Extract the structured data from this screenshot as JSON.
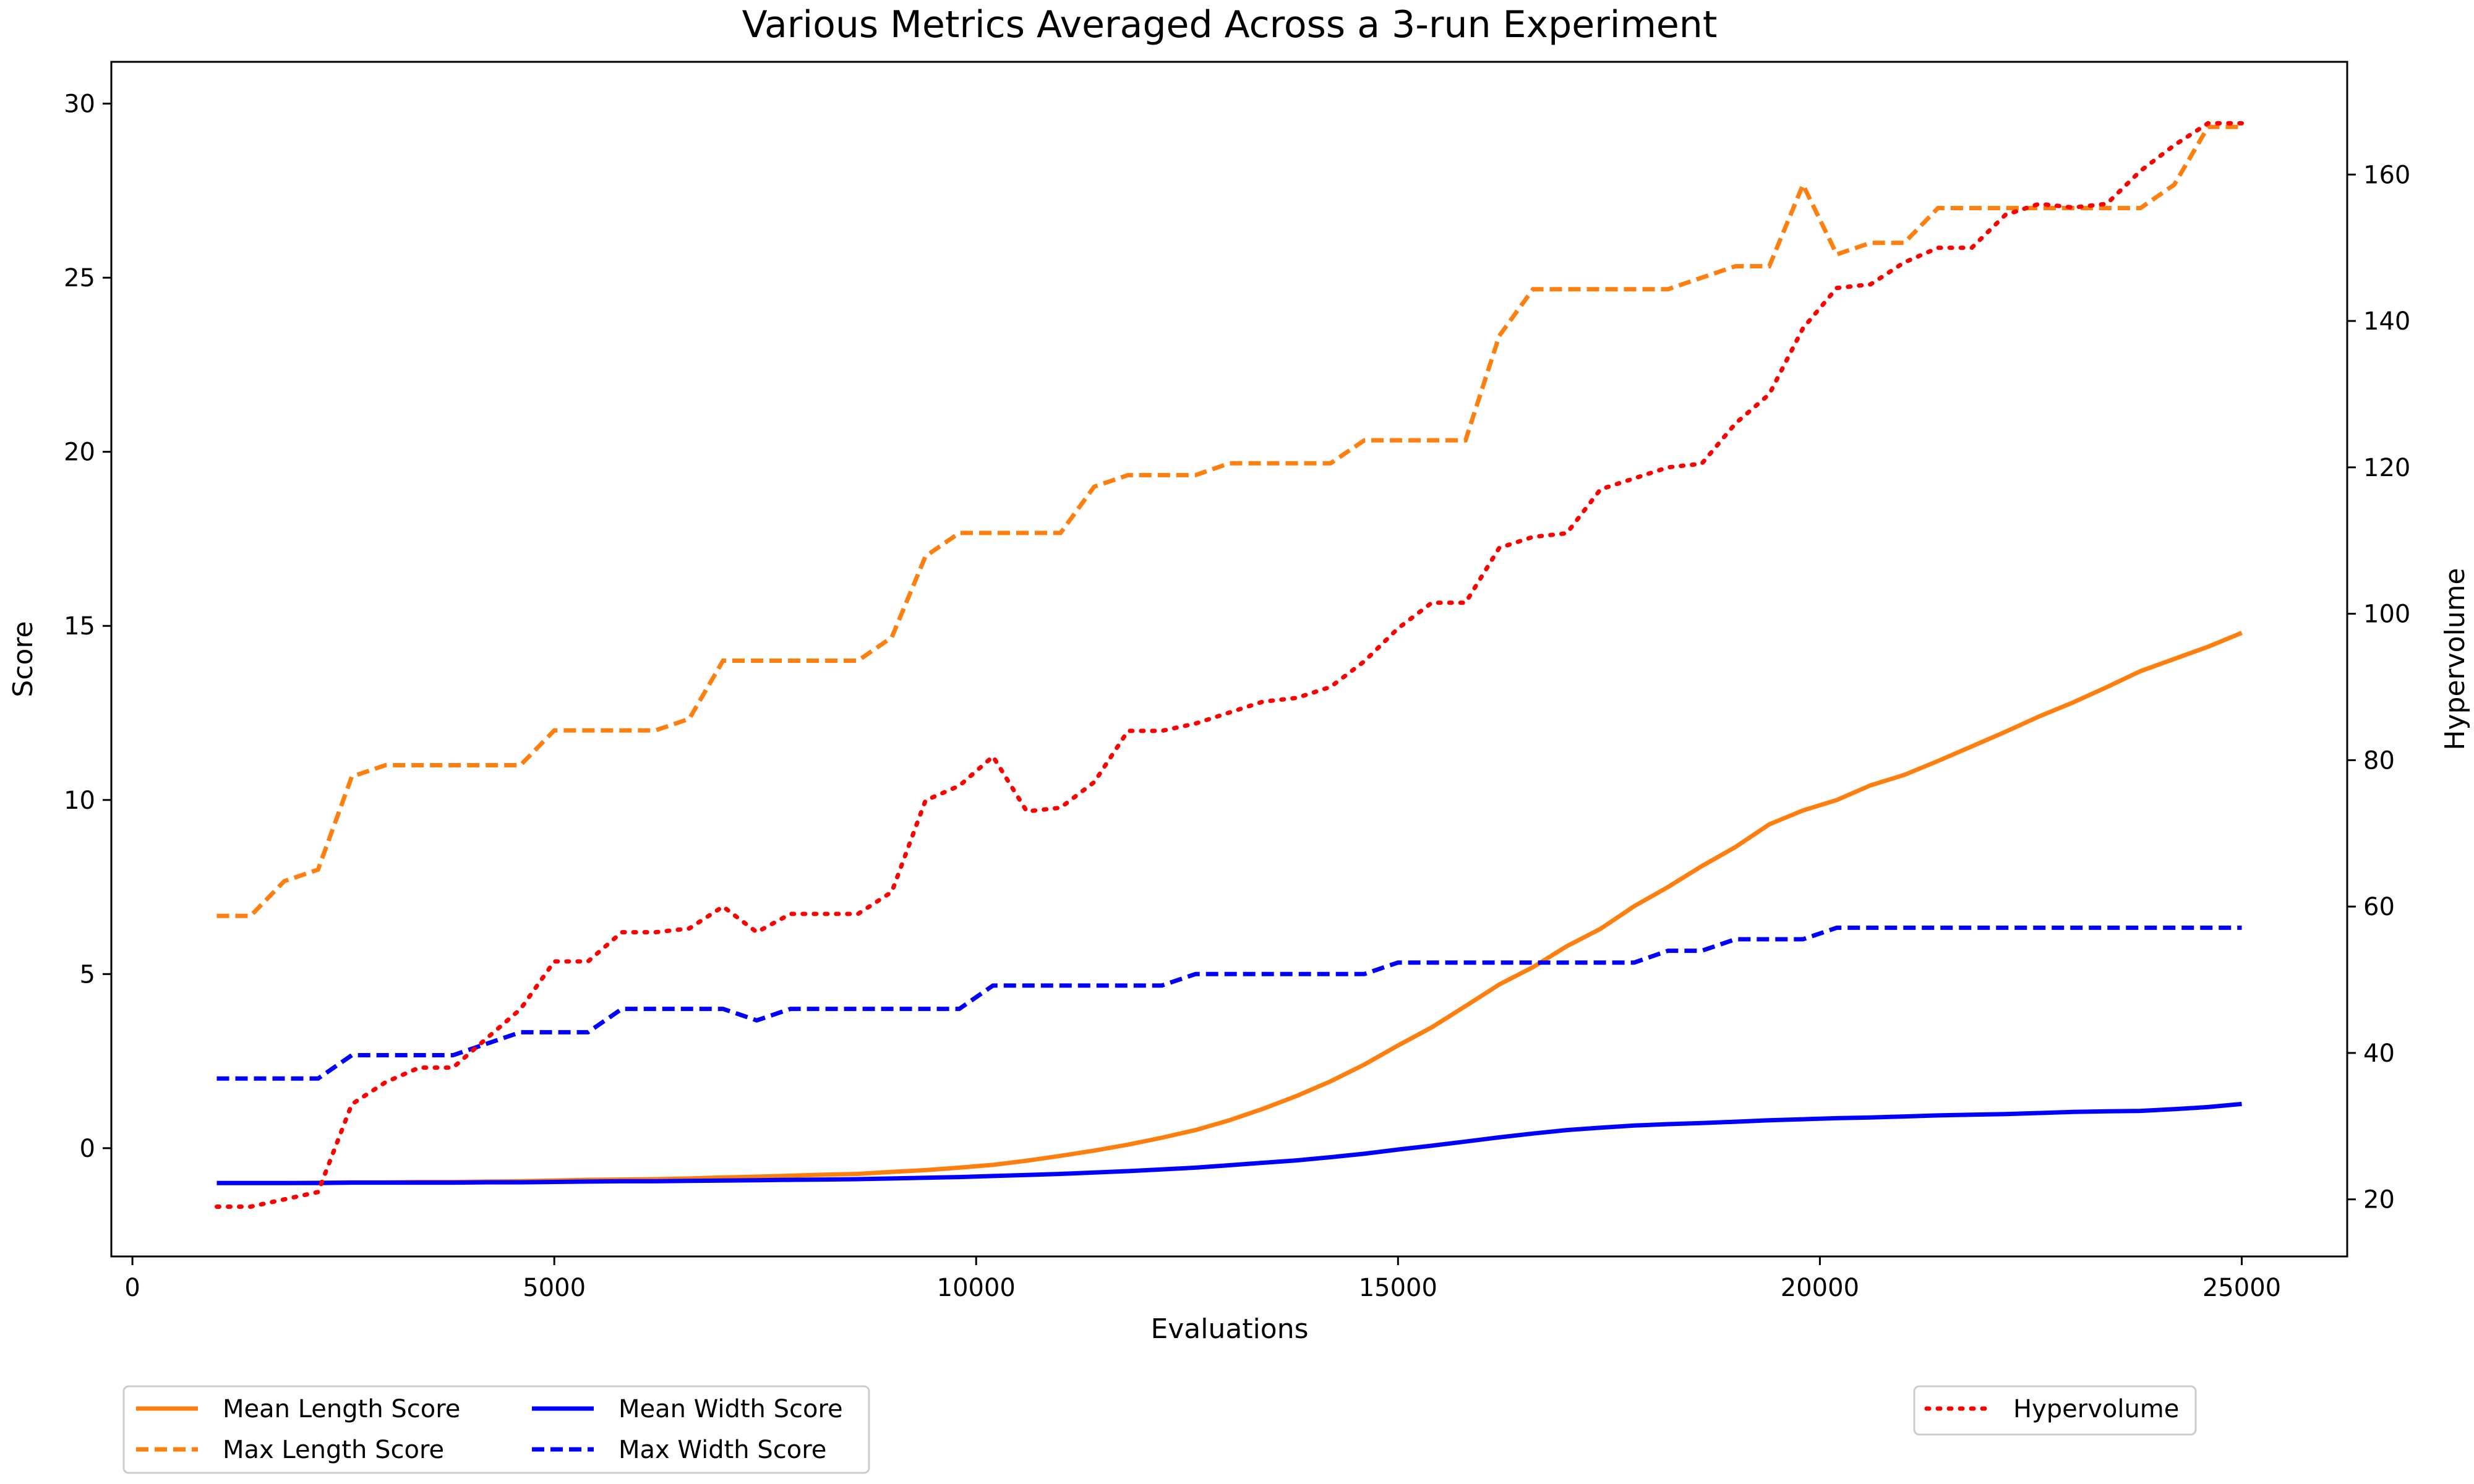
{
  "chart_data": {
    "type": "line",
    "title": "Various Metrics Averaged Across a 3-run Experiment",
    "xlabel": "Evaluations",
    "ylabel": "Score",
    "y2label": "Hypervolume",
    "xlim": [
      -250,
      26250
    ],
    "ylim": [
      -3.11,
      31.2
    ],
    "y2lim": [
      12.2,
      175.4
    ],
    "x_ticks": [
      0,
      5000,
      10000,
      15000,
      20000,
      25000
    ],
    "y_ticks": [
      0,
      5,
      10,
      15,
      20,
      25,
      30
    ],
    "y2_ticks": [
      20,
      40,
      60,
      80,
      100,
      120,
      140,
      160
    ],
    "grid": false,
    "legend_left_placement": "below-left",
    "legend_right_placement": "below-right",
    "x": [
      1000,
      1400,
      1800,
      2200,
      2600,
      3000,
      3400,
      3800,
      4200,
      4600,
      5000,
      5400,
      5800,
      6200,
      6600,
      7000,
      7400,
      7800,
      8200,
      8600,
      9000,
      9400,
      9800,
      10200,
      10600,
      11000,
      11400,
      11800,
      12200,
      12600,
      13000,
      13400,
      13800,
      14200,
      14600,
      15000,
      15400,
      15800,
      16200,
      16600,
      17000,
      17400,
      17800,
      18200,
      18600,
      19000,
      19400,
      19800,
      20200,
      20600,
      21000,
      21400,
      21800,
      22200,
      22600,
      23000,
      23400,
      23800,
      24200,
      24600,
      25000
    ],
    "series": [
      {
        "name": "Mean Length Score",
        "axis": "left",
        "color": "#ff7f0e",
        "dash": "solid",
        "values": [
          -1.0,
          -1.0,
          -1.0,
          -0.99,
          -0.98,
          -0.98,
          -0.97,
          -0.97,
          -0.96,
          -0.95,
          -0.93,
          -0.91,
          -0.9,
          -0.89,
          -0.87,
          -0.84,
          -0.82,
          -0.79,
          -0.76,
          -0.74,
          -0.68,
          -0.63,
          -0.56,
          -0.48,
          -0.36,
          -0.22,
          -0.07,
          0.1,
          0.3,
          0.52,
          0.8,
          1.13,
          1.5,
          1.92,
          2.4,
          2.95,
          3.47,
          4.08,
          4.7,
          5.2,
          5.8,
          6.3,
          6.95,
          7.5,
          8.1,
          8.65,
          9.3,
          9.7,
          10.0,
          10.42,
          10.72,
          11.12,
          11.54,
          11.96,
          12.4,
          12.8,
          13.24,
          13.7,
          14.05,
          14.4,
          14.8
        ]
      },
      {
        "name": "Max Length Score",
        "axis": "left",
        "color": "#ff7f0e",
        "dash": "dashed",
        "values": [
          6.67,
          6.67,
          7.67,
          8.0,
          10.67,
          11.0,
          11.0,
          11.0,
          11.0,
          11.0,
          12.0,
          12.0,
          12.0,
          12.0,
          12.33,
          14.0,
          14.0,
          14.0,
          14.0,
          14.0,
          14.67,
          17.0,
          17.67,
          17.67,
          17.67,
          17.67,
          19.0,
          19.33,
          19.33,
          19.33,
          19.67,
          19.67,
          19.67,
          19.67,
          20.33,
          20.33,
          20.33,
          20.33,
          23.33,
          24.67,
          24.67,
          24.67,
          24.67,
          24.67,
          25.0,
          25.33,
          25.33,
          27.67,
          25.67,
          26.0,
          26.0,
          27.0,
          27.0,
          27.0,
          27.0,
          27.0,
          27.0,
          27.0,
          27.67,
          29.33,
          29.33
        ]
      },
      {
        "name": "Mean Width Score",
        "axis": "left",
        "color": "#0000ff",
        "dash": "solid",
        "values": [
          -1.0,
          -1.0,
          -1.0,
          -1.0,
          -0.99,
          -0.99,
          -0.99,
          -0.99,
          -0.98,
          -0.98,
          -0.97,
          -0.96,
          -0.95,
          -0.95,
          -0.94,
          -0.93,
          -0.92,
          -0.91,
          -0.9,
          -0.89,
          -0.87,
          -0.85,
          -0.83,
          -0.8,
          -0.77,
          -0.74,
          -0.7,
          -0.66,
          -0.61,
          -0.56,
          -0.49,
          -0.42,
          -0.35,
          -0.26,
          -0.16,
          -0.04,
          0.07,
          0.19,
          0.31,
          0.42,
          0.52,
          0.59,
          0.65,
          0.69,
          0.72,
          0.76,
          0.8,
          0.83,
          0.86,
          0.88,
          0.91,
          0.94,
          0.96,
          0.98,
          1.01,
          1.04,
          1.06,
          1.07,
          1.12,
          1.18,
          1.27
        ]
      },
      {
        "name": "Max Width Score",
        "axis": "left",
        "color": "#0000ff",
        "dash": "dashed",
        "values": [
          2.0,
          2.0,
          2.0,
          2.0,
          2.67,
          2.67,
          2.67,
          2.67,
          3.0,
          3.33,
          3.33,
          3.33,
          4.0,
          4.0,
          4.0,
          4.0,
          3.67,
          4.0,
          4.0,
          4.0,
          4.0,
          4.0,
          4.0,
          4.67,
          4.67,
          4.67,
          4.67,
          4.67,
          4.67,
          5.0,
          5.0,
          5.0,
          5.0,
          5.0,
          5.0,
          5.33,
          5.33,
          5.33,
          5.33,
          5.33,
          5.33,
          5.33,
          5.33,
          5.67,
          5.67,
          6.0,
          6.0,
          6.0,
          6.33,
          6.33,
          6.33,
          6.33,
          6.33,
          6.33,
          6.33,
          6.33,
          6.33,
          6.33,
          6.33,
          6.33,
          6.33
        ]
      },
      {
        "name": "Hypervolume",
        "axis": "right",
        "color": "#ff0000",
        "dash": "dotted",
        "values": [
          19.0,
          19.0,
          20.0,
          21.0,
          33.0,
          36.0,
          38.0,
          38.0,
          42.0,
          46.0,
          52.5,
          52.5,
          56.5,
          56.5,
          57.0,
          60.0,
          56.5,
          59.0,
          59.0,
          59.0,
          62.0,
          74.5,
          76.5,
          80.5,
          73.0,
          73.5,
          77.0,
          84.0,
          84.0,
          85.0,
          86.5,
          88.0,
          88.5,
          90.0,
          93.5,
          98.0,
          101.5,
          101.5,
          109.0,
          110.5,
          111.0,
          117.0,
          118.5,
          120.0,
          120.5,
          126.0,
          130.0,
          139.0,
          144.5,
          145.0,
          148.0,
          150.0,
          150.0,
          154.5,
          156.0,
          155.5,
          156.0,
          160.5,
          164.0,
          167.0,
          167.0
        ]
      }
    ]
  }
}
